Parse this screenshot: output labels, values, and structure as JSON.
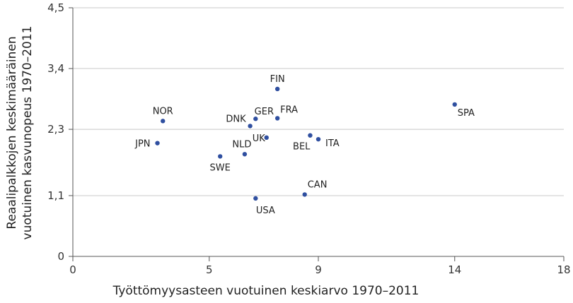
{
  "chart_data": {
    "type": "scatter",
    "xlabel": "Työttömyysasteen vuotuinen keskiarvo 1970–2011",
    "ylabel_line1": "Reaalipalkkojen keskimääräinen",
    "ylabel_line2": "vuotuinen kasvunopeus 1970–2011",
    "xlim": [
      0,
      18
    ],
    "ylim": [
      0,
      4.5
    ],
    "xticks": [
      0,
      5,
      9,
      14,
      18
    ],
    "xtick_labels": [
      "0",
      "5",
      "9",
      "14",
      "18"
    ],
    "yticks": [
      0,
      1.1,
      2.3,
      3.4,
      4.5
    ],
    "ytick_labels": [
      "0",
      "1,1",
      "2,3",
      "3,4",
      "4,5"
    ],
    "grid": "horizontal",
    "point_color": "#2f4fa0",
    "points": [
      {
        "label": "NOR",
        "x": 3.3,
        "y": 2.45
      },
      {
        "label": "JPN",
        "x": 3.1,
        "y": 2.05
      },
      {
        "label": "SWE",
        "x": 5.4,
        "y": 1.81
      },
      {
        "label": "NLD",
        "x": 6.3,
        "y": 1.85
      },
      {
        "label": "DNK",
        "x": 6.5,
        "y": 2.36
      },
      {
        "label": "GER",
        "x": 6.7,
        "y": 2.49
      },
      {
        "label": "UK",
        "x": 7.1,
        "y": 2.15
      },
      {
        "label": "FIN",
        "x": 7.5,
        "y": 3.03
      },
      {
        "label": "FRA",
        "x": 7.5,
        "y": 2.5
      },
      {
        "label": "USA",
        "x": 6.7,
        "y": 1.05
      },
      {
        "label": "CAN",
        "x": 8.5,
        "y": 1.12
      },
      {
        "label": "BEL",
        "x": 8.7,
        "y": 2.19
      },
      {
        "label": "ITA",
        "x": 9.0,
        "y": 2.12
      },
      {
        "label": "SPA",
        "x": 14.0,
        "y": 2.75
      }
    ]
  }
}
